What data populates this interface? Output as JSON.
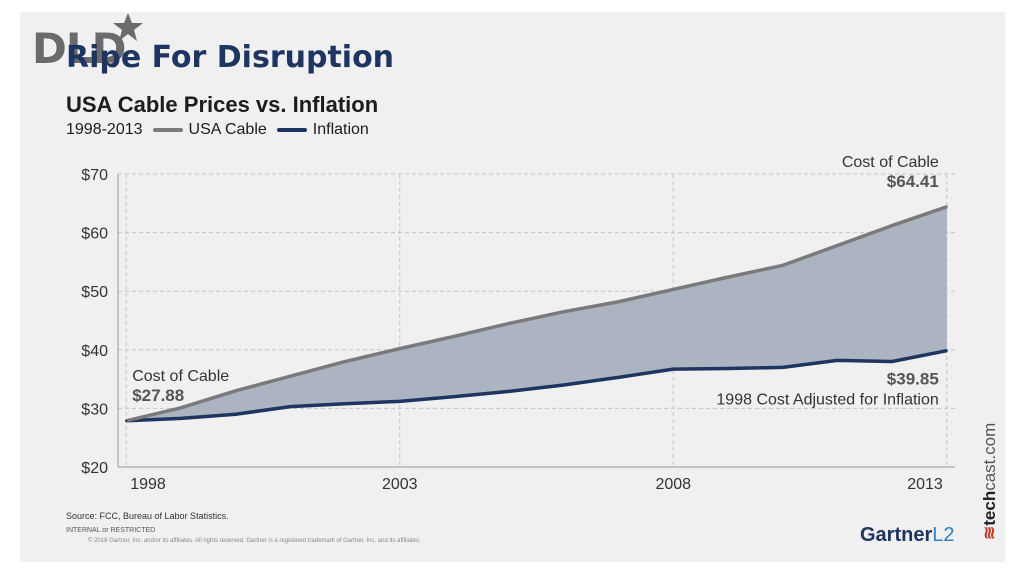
{
  "header": {
    "logo_text": "DLD",
    "headline": "Ripe For Disruption",
    "subtitle": "USA Cable Prices vs. Inflation",
    "period": "1998-2013"
  },
  "footer": {
    "source": "Source: FCC, Bureau of Labor Statistics.",
    "internal": "INTERNAL or RESTRICTED",
    "copyright": "© 2018 Gartner, Inc. and/or its affiliates. All rights reserved. Gartner is a registered trademark of Gartner, Inc. and its affiliates.",
    "gartner_logo": "Gartner",
    "gartner_suffix": "L2",
    "techcast_prefix": "tech",
    "techcast_suffix": "cast.com"
  },
  "colors": {
    "cable": "#7a7a7a",
    "inflation": "#1d3560",
    "fill": "#a9b0be",
    "headline": "#1d3560"
  },
  "chart_data": {
    "type": "area",
    "title": "USA Cable Prices vs. Inflation",
    "xlim": [
      1997.85,
      2013.15
    ],
    "ylim": [
      20,
      70
    ],
    "xticks": [
      1998,
      2003,
      2008,
      2013
    ],
    "xtick_labels": [
      "1998",
      "2003",
      "2008",
      "2013"
    ],
    "yticks": [
      20,
      30,
      40,
      50,
      60,
      70
    ],
    "ytick_labels": [
      "$20",
      "$30",
      "$40",
      "$50",
      "$60",
      "$70"
    ],
    "grid": true,
    "legend_position": "top-left",
    "series": [
      {
        "name": "USA Cable",
        "x": [
          1998,
          1999,
          2000,
          2001,
          2002,
          2003,
          2004,
          2005,
          2006,
          2007,
          2008,
          2009,
          2010,
          2011,
          2012,
          2013
        ],
        "values": [
          27.88,
          30.1,
          33.0,
          35.5,
          38.0,
          40.2,
          42.3,
          44.5,
          46.5,
          48.2,
          50.3,
          52.4,
          54.4,
          57.8,
          61.2,
          64.41
        ]
      },
      {
        "name": "Inflation",
        "x": [
          1998,
          1999,
          2000,
          2001,
          2002,
          2003,
          2004,
          2005,
          2006,
          2007,
          2008,
          2009,
          2010,
          2011,
          2012,
          2013
        ],
        "values": [
          27.88,
          28.3,
          29.0,
          30.3,
          30.8,
          31.2,
          32.0,
          32.9,
          34.0,
          35.3,
          36.7,
          36.8,
          37.0,
          38.2,
          38.0,
          39.85
        ]
      }
    ],
    "annotations": [
      {
        "label": "Cost of Cable",
        "value": "$27.88",
        "x": 1998,
        "y": 27.88,
        "anchor": "start",
        "place": "above"
      },
      {
        "label": "Cost of Cable",
        "value": "$64.41",
        "x": 2013,
        "y": 64.41,
        "anchor": "end",
        "place": "above"
      },
      {
        "label": "1998 Cost Adjusted for Inflation",
        "value": "$39.85",
        "x": 2013,
        "y": 39.85,
        "anchor": "end",
        "place": "below"
      }
    ]
  }
}
